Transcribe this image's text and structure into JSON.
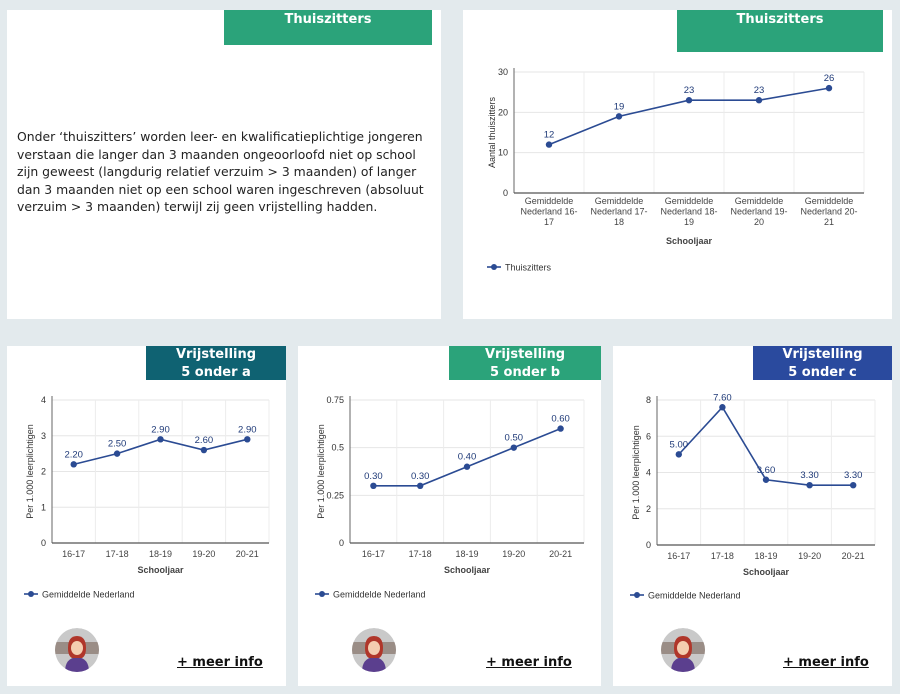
{
  "cards": {
    "thuiszitters_text": {
      "header": "Thuiszitters",
      "header_color": "#2ba37a",
      "body": "Onder ‘thuiszitters’ worden leer- en kwalificatieplichtige jongeren verstaan die langer dan 3 maanden ongeoorloofd niet op school zijn geweest (langdurig relatief verzuim > 3 maanden) of langer dan 3 maanden niet op een school waren ingeschreven (absoluut verzuim > 3 maanden) terwijl zij geen vrijstelling hadden."
    },
    "thuiszitters_chart": {
      "header": "Thuiszitters",
      "header_color": "#2ba37a"
    },
    "vrijstelling_a": {
      "header_line1": "Vrijstelling",
      "header_line2": "5 onder a",
      "header_color": "#0f6272",
      "more_info": "+ meer info"
    },
    "vrijstelling_b": {
      "header_line1": "Vrijstelling",
      "header_line2": "5 onder b",
      "header_color": "#2ba37a",
      "more_info": "+ meer info"
    },
    "vrijstelling_c": {
      "header_line1": "Vrijstelling",
      "header_line2": "5 onder c",
      "header_color": "#2a4a9e",
      "more_info": "+ meer info"
    }
  },
  "series_color": "#2b4b93",
  "chart_data": [
    {
      "type": "line",
      "title": "",
      "xlabel": "Schooljaar",
      "ylabel": "Aantal thuiszitters",
      "categories": [
        [
          "Gemiddelde",
          "Nederland 16-",
          "17"
        ],
        [
          "Gemiddelde",
          "Nederland 17-",
          "18"
        ],
        [
          "Gemiddelde",
          "Nederland 18-",
          "19"
        ],
        [
          "Gemiddelde",
          "Nederland 19-",
          "20"
        ],
        [
          "Gemiddelde",
          "Nederland 20-",
          "21"
        ]
      ],
      "series": [
        {
          "name": "Thuiszitters",
          "values": [
            12,
            19,
            23,
            23,
            26
          ]
        }
      ],
      "value_labels": [
        "12",
        "19",
        "23",
        "23",
        "26"
      ],
      "ylim": [
        0,
        30
      ],
      "yticks": [
        "0",
        "10",
        "20",
        "30"
      ],
      "ytick_values": [
        0,
        10,
        20,
        30
      ],
      "grid": true,
      "legend": "bottom-left"
    },
    {
      "type": "line",
      "title": "",
      "xlabel": "Schooljaar",
      "ylabel": "Per 1.000 leerplichtigen",
      "categories": [
        [
          "16-17"
        ],
        [
          "17-18"
        ],
        [
          "18-19"
        ],
        [
          "19-20"
        ],
        [
          "20-21"
        ]
      ],
      "series": [
        {
          "name": "Gemiddelde Nederland",
          "values": [
            2.2,
            2.5,
            2.9,
            2.6,
            2.9
          ]
        }
      ],
      "value_labels": [
        "2.20",
        "2.50",
        "2.90",
        "2.60",
        "2.90"
      ],
      "ylim": [
        0,
        4
      ],
      "yticks": [
        "0",
        "1",
        "2",
        "3",
        "4"
      ],
      "ytick_values": [
        0,
        1,
        2,
        3,
        4
      ],
      "grid": true,
      "legend": "bottom-left"
    },
    {
      "type": "line",
      "title": "",
      "xlabel": "Schooljaar",
      "ylabel": "Per 1.000 leerplichtigen",
      "categories": [
        [
          "16-17"
        ],
        [
          "17-18"
        ],
        [
          "18-19"
        ],
        [
          "19-20"
        ],
        [
          "20-21"
        ]
      ],
      "series": [
        {
          "name": "Gemiddelde Nederland",
          "values": [
            0.3,
            0.3,
            0.4,
            0.5,
            0.6
          ]
        }
      ],
      "value_labels": [
        "0.30",
        "0.30",
        "0.40",
        "0.50",
        "0.60"
      ],
      "ylim": [
        0,
        0.75
      ],
      "yticks": [
        "0",
        "0.25",
        "0.5",
        "0.75"
      ],
      "ytick_values": [
        0,
        0.25,
        0.5,
        0.75
      ],
      "grid": true,
      "legend": "bottom-left"
    },
    {
      "type": "line",
      "title": "",
      "xlabel": "Schooljaar",
      "ylabel": "Per 1.000 leerplichtigen",
      "categories": [
        [
          "16-17"
        ],
        [
          "17-18"
        ],
        [
          "18-19"
        ],
        [
          "19-20"
        ],
        [
          "20-21"
        ]
      ],
      "series": [
        {
          "name": "Gemiddelde Nederland",
          "values": [
            5.0,
            7.6,
            3.6,
            3.3,
            3.3
          ]
        }
      ],
      "value_labels": [
        "5.00",
        "7.60",
        "3.60",
        "3.30",
        "3.30"
      ],
      "ylim": [
        0,
        8
      ],
      "yticks": [
        "0",
        "2",
        "4",
        "6",
        "8"
      ],
      "ytick_values": [
        0,
        2,
        4,
        6,
        8
      ],
      "grid": true,
      "legend": "bottom-left"
    }
  ]
}
